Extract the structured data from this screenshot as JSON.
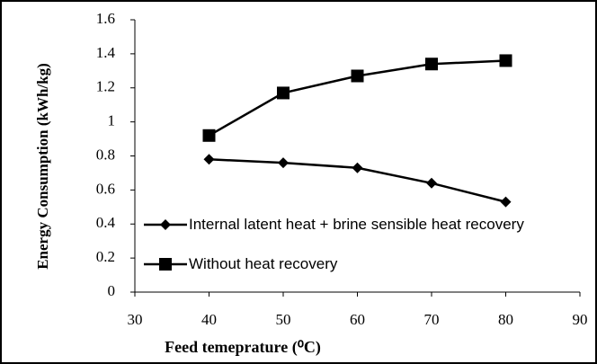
{
  "chart_data": {
    "type": "line",
    "x": [
      40,
      50,
      60,
      70,
      80
    ],
    "series": [
      {
        "name": "Internal latent heat + brine sensible heat recovery",
        "color": "#000000",
        "marker": "diamond",
        "values": [
          0.78,
          0.76,
          0.73,
          0.64,
          0.53
        ]
      },
      {
        "name": "Without heat recovery",
        "color": "#000000",
        "marker": "square",
        "values": [
          0.92,
          1.17,
          1.27,
          1.34,
          1.36
        ]
      }
    ],
    "xlabel": "Feed temeprature (⁰C)",
    "ylabel": "Energy Consumption (kWh/kg)",
    "xlim": [
      30,
      90
    ],
    "xticks": [
      30,
      40,
      50,
      60,
      70,
      80,
      90
    ],
    "ylim": [
      0,
      1.6
    ],
    "yticks": [
      0,
      0.2,
      0.4,
      0.6,
      0.8,
      1,
      1.2,
      1.4,
      1.6
    ],
    "grid": false,
    "legend": "lower left"
  }
}
